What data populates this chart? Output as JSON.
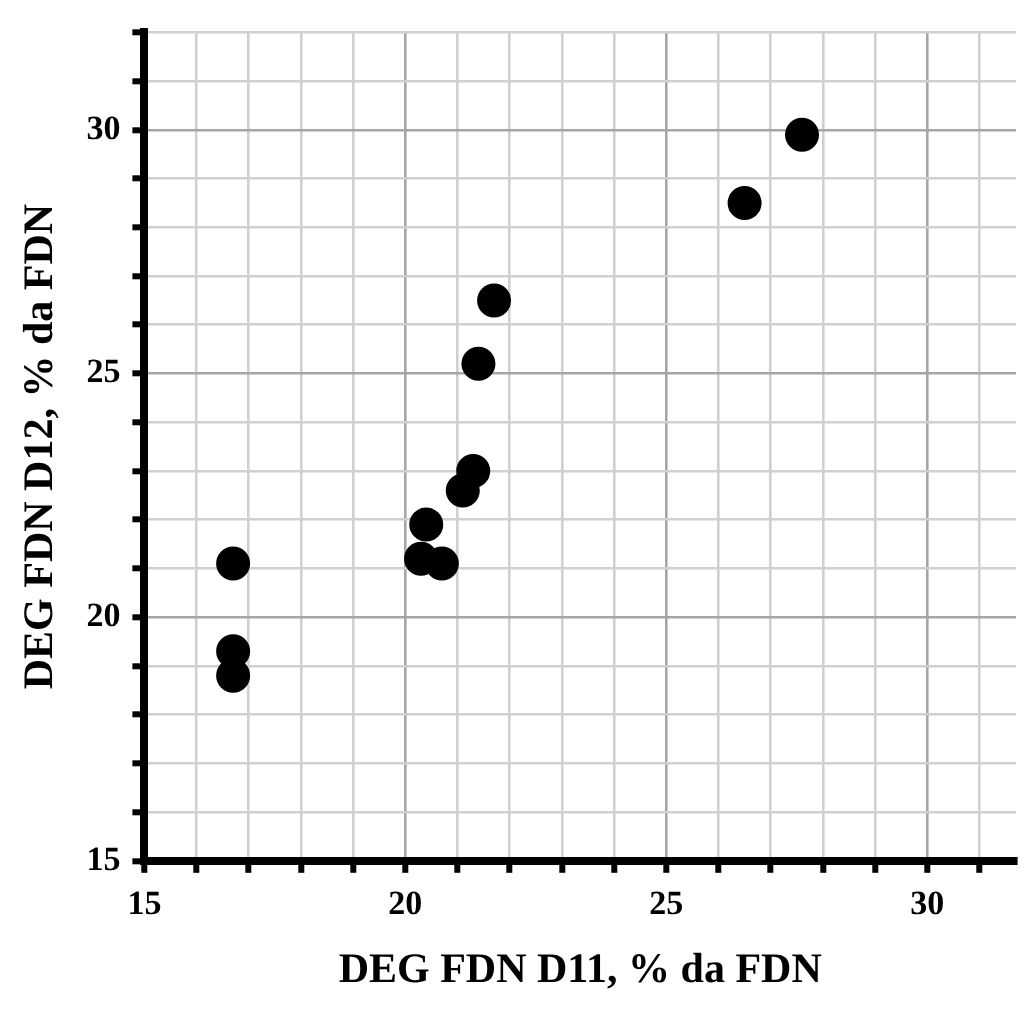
{
  "chart_data": {
    "type": "scatter",
    "xlabel": "DEG FDN D11, % da FDN",
    "ylabel": "DEG FDN D12, % da FDN",
    "x": [
      16.7,
      16.7,
      16.7,
      20.3,
      20.7,
      20.4,
      21.1,
      21.3,
      21.4,
      21.7,
      26.5,
      27.6
    ],
    "values": [
      21.1,
      19.3,
      18.8,
      21.2,
      21.1,
      21.9,
      22.6,
      23.0,
      25.2,
      26.5,
      28.5,
      29.9
    ],
    "color": "#000000",
    "marker": "circle",
    "grid": true,
    "legend": false,
    "xlim": [
      15,
      31.7
    ],
    "ylim": [
      15,
      32
    ],
    "xticks": [
      15,
      {
        "value": 16,
        "label": null
      },
      {
        "value": 17,
        "label": null
      },
      {
        "value": 18,
        "label": null
      },
      {
        "value": 19,
        "label": null
      },
      20,
      {
        "value": 21,
        "label": null
      },
      {
        "value": 22,
        "label": null
      },
      {
        "value": 23,
        "label": null
      },
      {
        "value": 24,
        "label": null
      },
      25,
      {
        "value": 26,
        "label": null
      },
      {
        "value": 27,
        "label": null
      },
      {
        "value": 28,
        "label": null
      },
      {
        "value": 29,
        "label": null
      },
      30,
      {
        "value": 31,
        "label": null
      }
    ],
    "yticks": [
      15,
      {
        "value": 16,
        "label": null
      },
      {
        "value": 17,
        "label": null
      },
      {
        "value": 18,
        "label": null
      },
      {
        "value": 19,
        "label": null
      },
      20,
      {
        "value": 21,
        "label": null
      },
      {
        "value": 22,
        "label": null
      },
      {
        "value": 23,
        "label": null
      },
      {
        "value": 24,
        "label": null
      },
      25,
      {
        "value": 26,
        "label": null
      },
      {
        "value": 27,
        "label": null
      },
      {
        "value": 28,
        "label": null
      },
      {
        "value": 29,
        "label": null
      },
      30,
      {
        "value": 31,
        "label": null
      },
      {
        "value": 32,
        "label": null
      }
    ]
  }
}
